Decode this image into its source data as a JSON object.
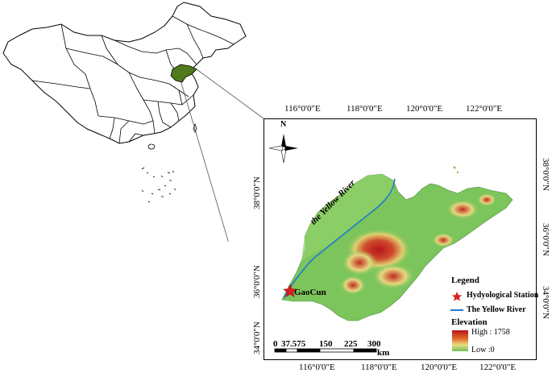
{
  "map": {
    "top_longitude_labels": [
      "116°0'0\"E",
      "118°0'0\"E",
      "120°0'0\"E",
      "122°0'0\"E"
    ],
    "bottom_longitude_labels": [
      "116°0'0\"E",
      "118°0'0\"E",
      "120°0'0\"E",
      "122°0'0\"E"
    ],
    "left_latitude_labels": [
      "38°0'0\"N",
      "36°0'0\"N",
      "34°0'0\"N"
    ],
    "right_latitude_labels": [
      "38°0'0\"N",
      "36°0'0\"N",
      "34°0'0\"N"
    ],
    "north_arrow_label": "N",
    "river_label": "the Yellow River",
    "station_label": "GaoCun",
    "colors": {
      "highlight_province": "#4f7a1b",
      "river": "#1f7bd0",
      "station": "#d81e1e",
      "elev_high": "#b8141b",
      "elev_mid": "#e8e080",
      "elev_low": "#6fbf5a"
    }
  },
  "legend": {
    "title": "Legend",
    "station_item": "Hydyological Station",
    "river_item": "The Yellow River",
    "elevation_title": "Elevation",
    "high_label": "High : 1758",
    "low_label": "Low :0"
  },
  "scale_bar": {
    "ticks": [
      "0",
      "37.575",
      "150",
      "225",
      "300"
    ],
    "unit": "km"
  }
}
